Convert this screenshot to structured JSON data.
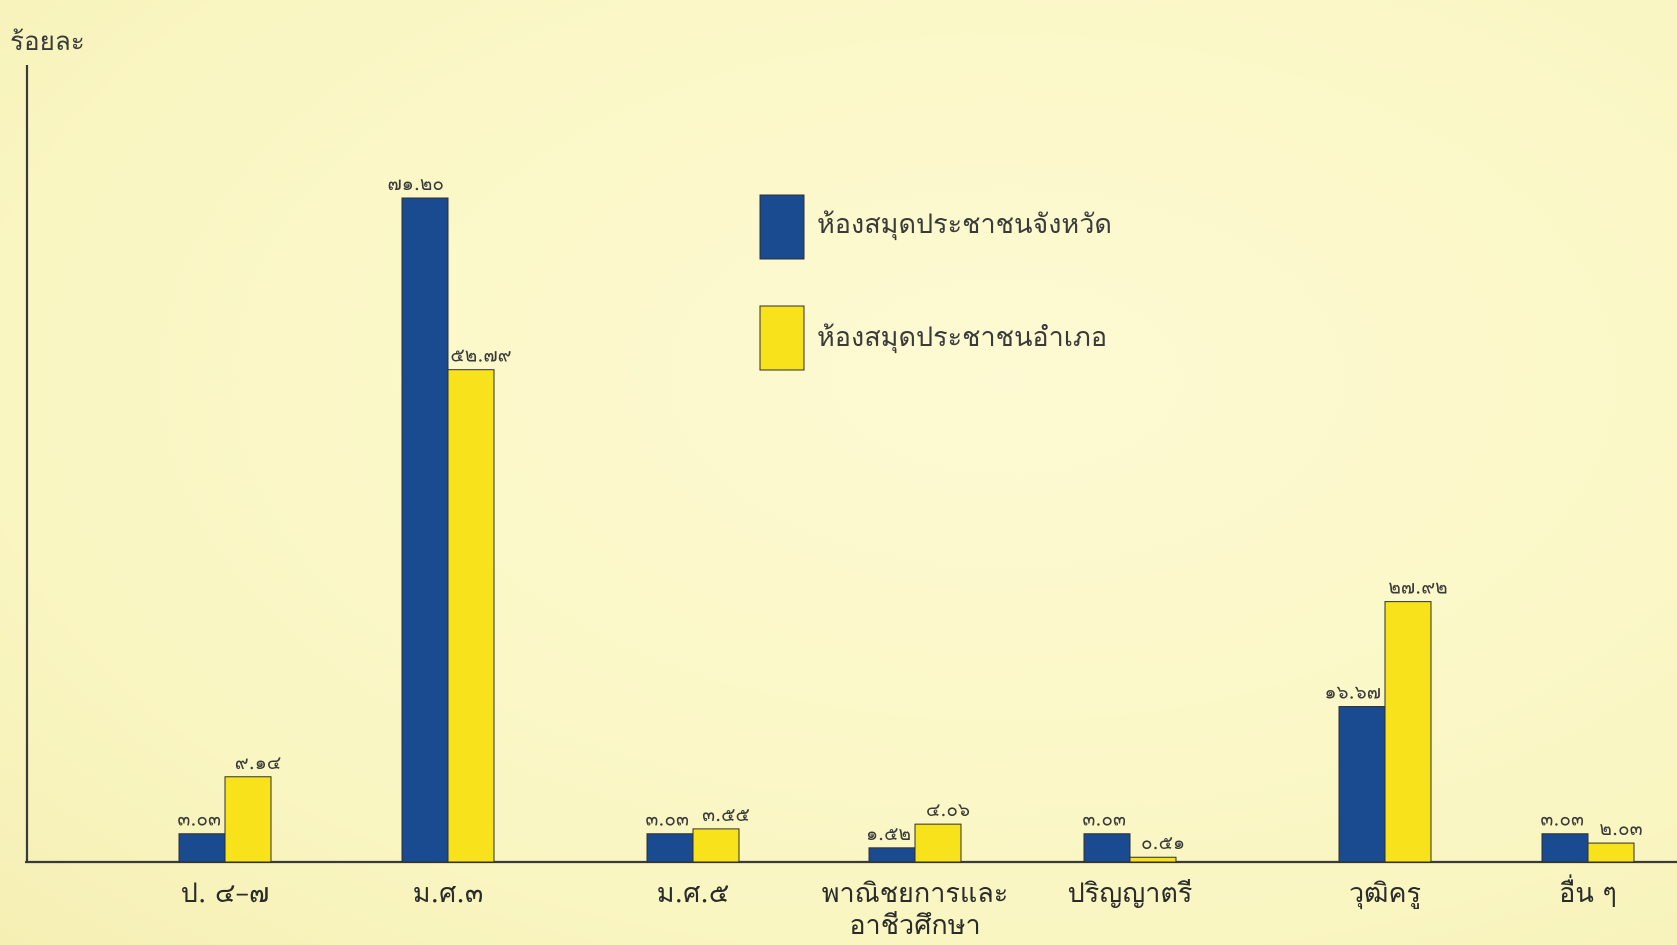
{
  "chart_data": {
    "type": "bar",
    "title": "",
    "xlabel": "",
    "ylabel": "ร้อยละ",
    "ylim": [
      0,
      72
    ],
    "grid": false,
    "legend_position": "top-center",
    "categories": [
      "ป. ๔–๗",
      "ม.ศ.๓",
      "ม.ศ.๕",
      "พาณิชยการและ อาชีวศึกษา",
      "ปริญญาตรี",
      "วุฒิครู",
      "อื่น ๆ"
    ],
    "series": [
      {
        "name": "ห้องสมุดประชาชนจังหวัด",
        "color": "#1a4a8f",
        "values": [
          3.03,
          71.2,
          3.03,
          1.52,
          3.03,
          16.67,
          3.03
        ],
        "labels": [
          "๓.๐๓",
          "๗๑.๒๐",
          "๓.๐๓",
          "๑.๕๒",
          "๓.๐๓",
          "๑๖.๖๗",
          "๓.๐๓"
        ]
      },
      {
        "name": "ห้องสมุดประชาชนอำเภอ",
        "color": "#f7e21c",
        "values": [
          9.14,
          52.79,
          3.55,
          4.06,
          0.51,
          27.92,
          2.03
        ],
        "labels": [
          "๙.๑๔",
          "๕๒.๗๙",
          "๓.๕๕",
          "๔.๐๖",
          "๐.๕๑",
          "๒๗.๙๒",
          "๒.๐๓"
        ]
      }
    ]
  }
}
